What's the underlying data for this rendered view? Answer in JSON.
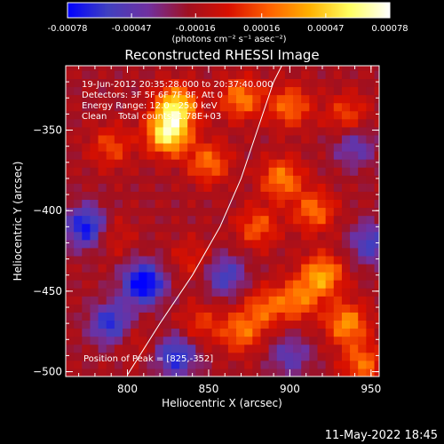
{
  "chart_data": {
    "type": "heatmap",
    "title": "Reconstructed RHESSI Image",
    "xlabel": "Heliocentric X (arcsec)",
    "ylabel": "Heliocentric Y (arcsec)",
    "xlim": [
      762,
      955
    ],
    "ylim": [
      -503,
      -310
    ],
    "x_ticks": [
      800,
      850,
      900,
      950
    ],
    "y_ticks": [
      -500,
      -450,
      -400,
      -350
    ],
    "colorbar": {
      "range": [
        -0.00078,
        0.00078
      ],
      "ticks": [
        -0.00078,
        -0.00047,
        -0.00016,
        0.00016,
        0.00047,
        0.00078
      ],
      "tick_labels": [
        "-0.00078",
        "-0.00047",
        "-0.00016",
        "0.00016",
        "0.00047",
        "0.00078"
      ],
      "unit_label": "(photons cm⁻² s⁻¹ asec⁻²)",
      "colors": [
        "#0000ff",
        "#4040c0",
        "#7030a0",
        "#a01020",
        "#d81000",
        "#ff6000",
        "#ffb000",
        "#ffff60",
        "#ffffff"
      ]
    },
    "annotations": [
      "19-Jun-2012 20:35:28.000 to 20:37:40.000",
      "Detectors: 3F 5F 6F 7F 8F, Att 0",
      "Energy Range: 12.0 - 25.0 keV",
      "Clean    Total counts: 1.78E+03"
    ],
    "peak_label": "Position of Peak = [825,-352]",
    "peak": [
      825,
      -352
    ],
    "limb_curve": [
      [
        800,
        -502
      ],
      [
        820,
        -470
      ],
      [
        840,
        -440
      ],
      [
        857,
        -410
      ],
      [
        870,
        -380
      ],
      [
        880,
        -350
      ],
      [
        890,
        -320
      ],
      [
        895,
        -310
      ]
    ],
    "hotspots": [
      {
        "x": 825,
        "y": -352,
        "v": 0.00078
      },
      {
        "x": 830,
        "y": -335,
        "v": 0.0007
      },
      {
        "x": 790,
        "y": -360,
        "v": 0.0003
      },
      {
        "x": 850,
        "y": -370,
        "v": 0.0004
      },
      {
        "x": 870,
        "y": -330,
        "v": 0.00045
      },
      {
        "x": 900,
        "y": -335,
        "v": 0.0004
      },
      {
        "x": 935,
        "y": -340,
        "v": 0.0003
      },
      {
        "x": 895,
        "y": -380,
        "v": 0.00045
      },
      {
        "x": 915,
        "y": -400,
        "v": 0.0004
      },
      {
        "x": 880,
        "y": -410,
        "v": 0.00035
      },
      {
        "x": 920,
        "y": -440,
        "v": 0.00055
      },
      {
        "x": 905,
        "y": -455,
        "v": 0.0004
      },
      {
        "x": 885,
        "y": -460,
        "v": 0.00035
      },
      {
        "x": 870,
        "y": -475,
        "v": 0.0004
      },
      {
        "x": 935,
        "y": -470,
        "v": 0.0005
      },
      {
        "x": 945,
        "y": -495,
        "v": 0.0004
      },
      {
        "x": 845,
        "y": -470,
        "v": 0.00025
      },
      {
        "x": 790,
        "y": -415,
        "v": 0.0002
      },
      {
        "x": 805,
        "y": -480,
        "v": 0.00015
      },
      {
        "x": 840,
        "y": -430,
        "v": 0.0002
      }
    ],
    "coldspots": [
      {
        "x": 775,
        "y": -410,
        "v": -0.0006
      },
      {
        "x": 810,
        "y": -445,
        "v": -0.0007
      },
      {
        "x": 790,
        "y": -470,
        "v": -0.0005
      },
      {
        "x": 830,
        "y": -490,
        "v": -0.0005
      },
      {
        "x": 860,
        "y": -440,
        "v": -0.0004
      },
      {
        "x": 950,
        "y": -420,
        "v": -0.0004
      },
      {
        "x": 940,
        "y": -360,
        "v": -0.0003
      },
      {
        "x": 900,
        "y": -490,
        "v": -0.0003
      }
    ]
  },
  "footer": {
    "timestamp": "11-May-2022 18:45"
  }
}
